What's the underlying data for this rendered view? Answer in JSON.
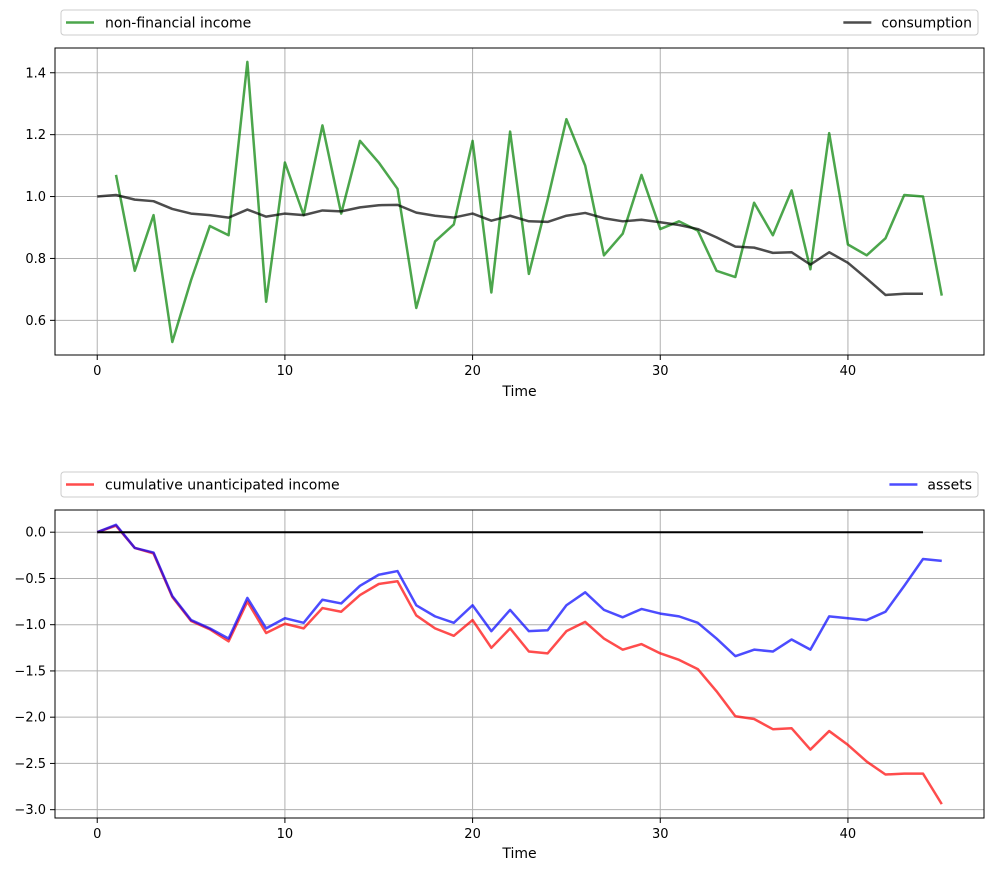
{
  "chart_data": [
    {
      "type": "line",
      "xlabel": "Time",
      "ylabel": "",
      "xlim": [
        -2.25,
        47.25
      ],
      "ylim": [
        0.488,
        1.48
      ],
      "xticks": [
        0,
        10,
        20,
        30,
        40
      ],
      "yticks": [
        0.6,
        0.8,
        1.0,
        1.2,
        1.4
      ],
      "ytick_labels": [
        "0.6",
        "0.8",
        "1.0",
        "1.2",
        "1.4"
      ],
      "grid": true,
      "legend": "above, spanning",
      "series": [
        {
          "name": "non-financial income",
          "color": "#008000",
          "x": [
            1,
            2,
            3,
            4,
            5,
            6,
            7,
            8,
            9,
            10,
            11,
            12,
            13,
            14,
            15,
            16,
            17,
            18,
            19,
            20,
            21,
            22,
            23,
            24,
            25,
            26,
            27,
            28,
            29,
            30,
            31,
            32,
            33,
            34,
            35,
            36,
            37,
            38,
            39,
            40,
            41,
            42,
            43,
            44,
            45
          ],
          "y": [
            1.07,
            0.76,
            0.94,
            0.53,
            0.73,
            0.905,
            0.875,
            1.435,
            0.66,
            1.11,
            0.94,
            1.23,
            0.945,
            1.18,
            1.11,
            1.025,
            0.64,
            0.855,
            0.91,
            1.18,
            0.69,
            1.21,
            0.75,
            0.99,
            1.25,
            1.1,
            0.81,
            0.88,
            1.07,
            0.895,
            0.92,
            0.89,
            0.76,
            0.74,
            0.98,
            0.875,
            1.02,
            0.765,
            1.205,
            0.845,
            0.81,
            0.865,
            1.005,
            1.0,
            0.68
          ]
        },
        {
          "name": "consumption",
          "color": "#000000",
          "x": [
            0,
            1,
            2,
            3,
            4,
            5,
            6,
            7,
            8,
            9,
            10,
            11,
            12,
            13,
            14,
            15,
            16,
            17,
            18,
            19,
            20,
            21,
            22,
            23,
            24,
            25,
            26,
            27,
            28,
            29,
            30,
            31,
            32,
            33,
            34,
            35,
            36,
            37,
            38,
            39,
            40,
            41,
            42,
            43,
            44
          ],
          "y": [
            1.0,
            1.005,
            0.99,
            0.985,
            0.96,
            0.945,
            0.94,
            0.932,
            0.958,
            0.935,
            0.945,
            0.94,
            0.955,
            0.952,
            0.965,
            0.972,
            0.973,
            0.948,
            0.938,
            0.932,
            0.945,
            0.922,
            0.938,
            0.92,
            0.918,
            0.938,
            0.947,
            0.93,
            0.92,
            0.925,
            0.917,
            0.908,
            0.895,
            0.868,
            0.838,
            0.835,
            0.818,
            0.82,
            0.78,
            0.82,
            0.786,
            0.735,
            0.682,
            0.686,
            0.686
          ]
        }
      ]
    },
    {
      "type": "line",
      "xlabel": "Time",
      "ylabel": "",
      "xlim": [
        -2.25,
        47.25
      ],
      "ylim": [
        -3.09,
        0.24
      ],
      "xticks": [
        0,
        10,
        20,
        30,
        40
      ],
      "yticks": [
        0.0,
        -0.5,
        -1.0,
        -1.5,
        -2.0,
        -2.5,
        -3.0
      ],
      "ytick_labels": [
        "0.0",
        "−0.5",
        "−1.0",
        "−1.5",
        "−2.0",
        "−2.5",
        "−3.0"
      ],
      "grid": true,
      "legend": "above, spanning",
      "series": [
        {
          "name": "cumulative unanticipated income",
          "color": "#ff0000",
          "x": [
            0,
            1,
            2,
            3,
            4,
            5,
            6,
            7,
            8,
            9,
            10,
            11,
            12,
            13,
            14,
            15,
            16,
            17,
            18,
            19,
            20,
            21,
            22,
            23,
            24,
            25,
            26,
            27,
            28,
            29,
            30,
            31,
            32,
            33,
            34,
            35,
            36,
            37,
            38,
            39,
            40,
            41,
            42,
            43,
            44,
            45
          ],
          "y": [
            0,
            0.07,
            -0.17,
            -0.23,
            -0.7,
            -0.96,
            -1.05,
            -1.18,
            -0.75,
            -1.09,
            -0.99,
            -1.04,
            -0.82,
            -0.86,
            -0.68,
            -0.56,
            -0.53,
            -0.9,
            -1.04,
            -1.12,
            -0.95,
            -1.25,
            -1.04,
            -1.29,
            -1.31,
            -1.07,
            -0.97,
            -1.15,
            -1.27,
            -1.21,
            -1.31,
            -1.38,
            -1.48,
            -1.72,
            -1.99,
            -2.02,
            -2.13,
            -2.12,
            -2.35,
            -2.15,
            -2.3,
            -2.48,
            -2.62,
            -2.61,
            -2.61,
            -2.94
          ]
        },
        {
          "name": "assets",
          "color": "#0000ff",
          "x": [
            0,
            1,
            2,
            3,
            4,
            5,
            6,
            7,
            8,
            9,
            10,
            11,
            12,
            13,
            14,
            15,
            16,
            17,
            18,
            19,
            20,
            21,
            22,
            23,
            24,
            25,
            26,
            27,
            28,
            29,
            30,
            31,
            32,
            33,
            34,
            35,
            36,
            37,
            38,
            39,
            40,
            41,
            42,
            43,
            44,
            45
          ],
          "y": [
            0,
            0.08,
            -0.17,
            -0.22,
            -0.69,
            -0.95,
            -1.04,
            -1.15,
            -0.71,
            -1.04,
            -0.93,
            -0.98,
            -0.73,
            -0.77,
            -0.58,
            -0.46,
            -0.42,
            -0.79,
            -0.91,
            -0.98,
            -0.79,
            -1.07,
            -0.84,
            -1.07,
            -1.06,
            -0.79,
            -0.65,
            -0.84,
            -0.92,
            -0.83,
            -0.88,
            -0.91,
            -0.98,
            -1.15,
            -1.34,
            -1.27,
            -1.29,
            -1.16,
            -1.27,
            -0.91,
            -0.93,
            -0.95,
            -0.86,
            -0.58,
            -0.29,
            -0.31
          ]
        },
        {
          "name": "",
          "color": "#000000",
          "x": [
            0,
            44
          ],
          "y": [
            0,
            0
          ]
        }
      ]
    }
  ]
}
